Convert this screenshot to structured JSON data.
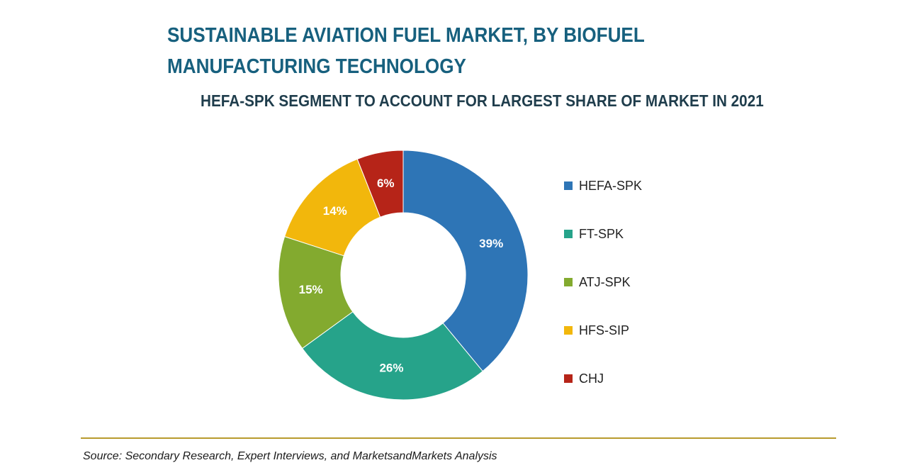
{
  "chart_data": {
    "type": "pie",
    "donut": true,
    "title": "SUSTAINABLE AVIATION FUEL MARKET, BY BIOFUEL MANUFACTURING TECHNOLOGY",
    "subtitle": "HEFA-SPK SEGMENT TO ACCOUNT FOR LARGEST SHARE OF MARKET IN 2021",
    "unit": "%",
    "legend_position": "right",
    "slices": [
      {
        "name": "HEFA-SPK",
        "value": 39,
        "label": "39%",
        "color": "#2e75b6"
      },
      {
        "name": "FT-SPK",
        "value": 26,
        "label": "26%",
        "color": "#26a38a"
      },
      {
        "name": "ATJ-SPK",
        "value": 15,
        "label": "15%",
        "color": "#83aa2f"
      },
      {
        "name": "HFS-SIP",
        "value": 14,
        "label": "14%",
        "color": "#f2b70c"
      },
      {
        "name": "CHJ",
        "value": 6,
        "label": "6%",
        "color": "#b62418"
      }
    ]
  },
  "source": "Source: Secondary Research, Expert Interviews, and MarketsandMarkets Analysis"
}
